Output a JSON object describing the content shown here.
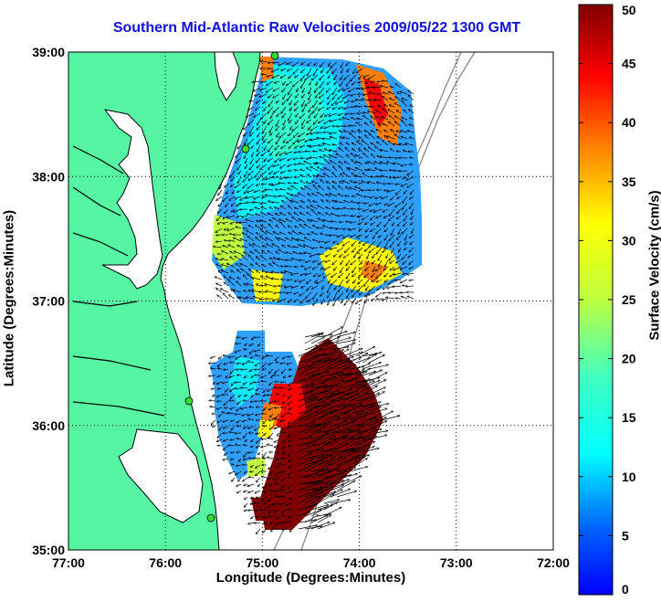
{
  "chart_data": {
    "type": "map",
    "title": "Southern Mid-Atlantic Raw Velocities 2009/05/22 1300 GMT",
    "xlabel": "Longitude (Degrees:Minutes)",
    "ylabel": "Latitude (Degrees:Minutes)",
    "x_ticks": [
      "77:00",
      "76:00",
      "75:00",
      "74:00",
      "73:00",
      "72:00"
    ],
    "y_ticks": [
      "39:00",
      "38:00",
      "37:00",
      "36:00",
      "35:00"
    ],
    "xlim": [
      -77,
      -72
    ],
    "ylim": [
      35,
      39
    ],
    "grid": true,
    "colorbar": {
      "label": "Surface Velocity (cm/s)",
      "range": [
        0,
        50
      ],
      "ticks": [
        "0",
        "5",
        "10",
        "15",
        "20",
        "25",
        "30",
        "35",
        "40",
        "45",
        "50"
      ],
      "colormap": "jet"
    },
    "colors": {
      "land": "#55f5a4",
      "coastline": "#000000",
      "bathymetry": "#888888",
      "title": "#1010e0"
    }
  }
}
